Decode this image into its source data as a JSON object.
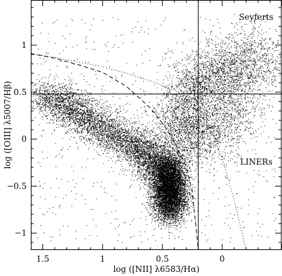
{
  "chart_data": {
    "type": "scatter",
    "xlabel": "log ([NII] λ6583/Hα)",
    "ylabel": "log ([OIII] λ5007/Hβ)",
    "x_reversed": true,
    "xlim": [
      1.6,
      -0.5
    ],
    "ylim": [
      -1.18,
      1.48
    ],
    "x_ticks": [
      1.5,
      1,
      0.5,
      0
    ],
    "x_tick_labels": [
      "1.5",
      "1",
      "0.5",
      "0"
    ],
    "y_ticks": [
      -1,
      -0.5,
      0,
      0.5,
      1
    ],
    "y_tick_labels": [
      "−1",
      "−0.5",
      "0",
      "0.5",
      "1"
    ],
    "grid": false,
    "legend": null,
    "annotations": [
      {
        "text": "Seyferts",
        "x": -0.14,
        "y": 1.27
      },
      {
        "text": "LINERs",
        "x": -0.15,
        "y": -0.27
      }
    ],
    "reference_lines": [
      {
        "orientation": "horizontal",
        "y": 0.48
      },
      {
        "orientation": "vertical",
        "x": 0.2
      }
    ],
    "curves": [
      {
        "style": "dashed",
        "points": [
          [
            1.6,
            0.91
          ],
          [
            1.4,
            0.86
          ],
          [
            1.2,
            0.79
          ],
          [
            1.0,
            0.71
          ],
          [
            0.8,
            0.56
          ],
          [
            0.6,
            0.33
          ],
          [
            0.5,
            0.17
          ],
          [
            0.4,
            -0.02
          ],
          [
            0.3,
            -0.3
          ],
          [
            0.25,
            -0.55
          ],
          [
            0.2,
            -1.18
          ]
        ]
      },
      {
        "style": "dotted",
        "points": [
          [
            1.6,
            0.91
          ],
          [
            1.4,
            0.87
          ],
          [
            1.2,
            0.82
          ],
          [
            1.0,
            0.77
          ],
          [
            0.8,
            0.7
          ],
          [
            0.6,
            0.62
          ],
          [
            0.4,
            0.52
          ],
          [
            0.2,
            0.34
          ],
          [
            0.1,
            0.12
          ],
          [
            0.0,
            -0.2
          ],
          [
            -0.1,
            -0.65
          ],
          [
            -0.2,
            -1.18
          ]
        ]
      }
    ],
    "point_groups": [
      {
        "name": "starforming-branch",
        "count": 5200,
        "points": [
          [
            1.5,
            0.48
          ],
          [
            1.3,
            0.35
          ],
          [
            1.1,
            0.2
          ],
          [
            0.9,
            0.05
          ],
          [
            0.7,
            -0.1
          ],
          [
            0.6,
            -0.2
          ],
          [
            0.5,
            -0.35
          ]
        ],
        "spread": [
          0.09,
          0.1
        ]
      },
      {
        "name": "dense-core",
        "count": 7000,
        "points": [
          [
            0.45,
            -0.3
          ],
          [
            0.45,
            -0.45
          ],
          [
            0.44,
            -0.6
          ],
          [
            0.44,
            -0.75
          ]
        ],
        "spread": [
          0.07,
          0.1
        ]
      },
      {
        "name": "agn-branch",
        "count": 3800,
        "points": [
          [
            0.42,
            -0.05
          ],
          [
            0.35,
            0.2
          ],
          [
            0.25,
            0.45
          ],
          [
            0.15,
            0.6
          ],
          [
            0.0,
            0.7
          ],
          [
            -0.2,
            0.8
          ],
          [
            -0.35,
            0.85
          ]
        ],
        "spread": [
          0.12,
          0.18
        ]
      },
      {
        "name": "liner-region",
        "count": 1200,
        "points": [
          [
            0.3,
            -0.1
          ],
          [
            0.15,
            0.0
          ],
          [
            0.0,
            0.2
          ],
          [
            -0.2,
            0.3
          ]
        ],
        "spread": [
          0.12,
          0.15
        ]
      },
      {
        "name": "background",
        "count": 700,
        "xrange": [
          1.55,
          -0.45
        ],
        "yrange": [
          -1.1,
          1.3
        ]
      }
    ]
  }
}
